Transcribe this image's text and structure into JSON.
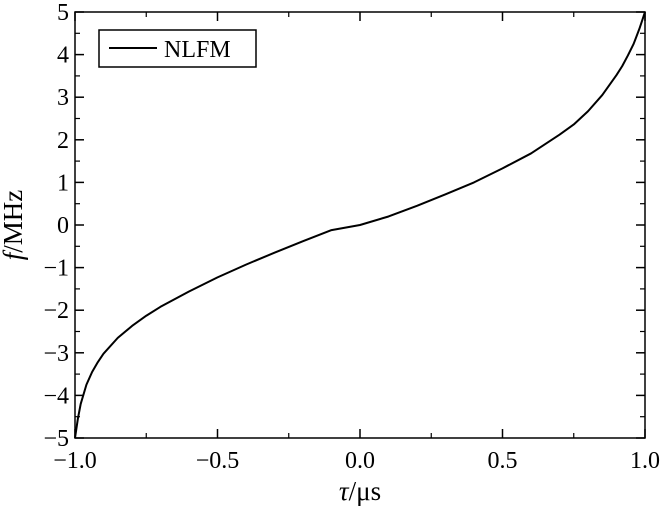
{
  "chart_data": {
    "type": "line",
    "title": "",
    "xlabel_symbol": "τ",
    "xlabel_unit": "/μs",
    "ylabel_symbol": "f",
    "ylabel_unit": "/MHz",
    "xlim": [
      -1.0,
      1.0
    ],
    "ylim": [
      -5,
      5
    ],
    "x_ticks": [
      -1.0,
      -0.5,
      0.0,
      0.5,
      1.0
    ],
    "x_tick_labels": [
      "−1.0",
      "−0.5",
      "0.0",
      "0.5",
      "1.0"
    ],
    "y_ticks": [
      -5,
      -4,
      -3,
      -2,
      -1,
      0,
      1,
      2,
      3,
      4,
      5
    ],
    "y_tick_labels": [
      "−5",
      "−4",
      "−3",
      "−2",
      "−1",
      "0",
      "1",
      "2",
      "3",
      "4",
      "5"
    ],
    "grid": false,
    "legend_position": "top-left",
    "series": [
      {
        "name": "NLFM",
        "color": "#000000",
        "x": [
          -1.0,
          -0.99,
          -0.98,
          -0.96,
          -0.94,
          -0.92,
          -0.9,
          -0.85,
          -0.8,
          -0.75,
          -0.7,
          -0.6,
          -0.5,
          -0.4,
          -0.3,
          -0.2,
          -0.1,
          0.0,
          0.1,
          0.2,
          0.3,
          0.4,
          0.5,
          0.6,
          0.7,
          0.75,
          0.8,
          0.85,
          0.9,
          0.92,
          0.94,
          0.96,
          0.98,
          0.99,
          1.0
        ],
        "y": [
          -5.0,
          -4.55,
          -4.2,
          -3.75,
          -3.45,
          -3.22,
          -3.02,
          -2.65,
          -2.37,
          -2.13,
          -1.92,
          -1.56,
          -1.23,
          -0.93,
          -0.65,
          -0.38,
          -0.12,
          0.0,
          0.2,
          0.45,
          0.72,
          1.0,
          1.33,
          1.68,
          2.12,
          2.36,
          2.67,
          3.05,
          3.52,
          3.73,
          3.98,
          4.25,
          4.6,
          4.8,
          5.0
        ]
      }
    ]
  }
}
